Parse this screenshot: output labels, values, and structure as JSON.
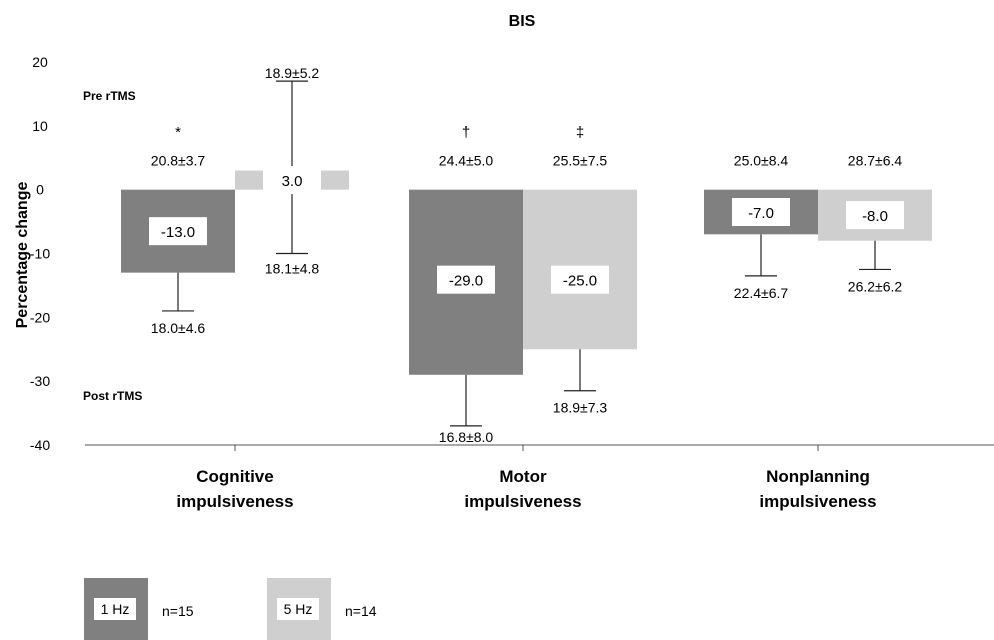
{
  "chart_data": {
    "type": "bar",
    "title": "BIS",
    "xlabel": "",
    "ylabel": "Percentage change",
    "ylim": [
      -40,
      20
    ],
    "yticks": [
      20,
      10,
      0,
      -10,
      -20,
      -30,
      -40
    ],
    "grid": false,
    "legend_position": "bottom-left",
    "markers": {
      "pre": "Pre rTMS",
      "post": "Post rTMS"
    },
    "categories": [
      [
        "Cognitive",
        "impulsiveness"
      ],
      [
        "Motor",
        "impulsiveness"
      ],
      [
        "Nonplanning",
        "impulsiveness"
      ]
    ],
    "significance": [
      [
        "*",
        ""
      ],
      [
        "†",
        "‡"
      ],
      [
        "",
        ""
      ]
    ],
    "series": [
      {
        "name": "1 Hz",
        "n_label": "n=15",
        "color": "#808080",
        "values": [
          -13.0,
          -29.0,
          -7.0
        ],
        "value_labels": [
          "-13.0",
          "-29.0",
          "-7.0"
        ],
        "error_bar": [
          {
            "dir": "down",
            "end": -19.0
          },
          {
            "dir": "down",
            "end": -37.0
          },
          {
            "dir": "down",
            "end": -13.5
          }
        ],
        "pre": [
          "20.8±3.7",
          "24.4±5.0",
          "25.0±8.4"
        ],
        "post": [
          "18.0±4.6",
          "16.8±8.0",
          "22.4±6.7"
        ]
      },
      {
        "name": "5 Hz",
        "n_label": "n=14",
        "color": "#cfcfcf",
        "values": [
          3.0,
          -25.0,
          -8.0
        ],
        "value_labels": [
          "3.0",
          "-25.0",
          "-8.0"
        ],
        "error_bar": [
          {
            "dir": "both",
            "low": -10.0,
            "high": 17.0
          },
          {
            "dir": "down",
            "end": -31.5
          },
          {
            "dir": "down",
            "end": -12.5
          }
        ],
        "pre": [
          "18.9±5.2",
          "25.5±7.5",
          "28.7±6.4"
        ],
        "post": [
          "18.1±4.8",
          "18.9±7.3",
          "26.2±6.2"
        ]
      }
    ]
  }
}
